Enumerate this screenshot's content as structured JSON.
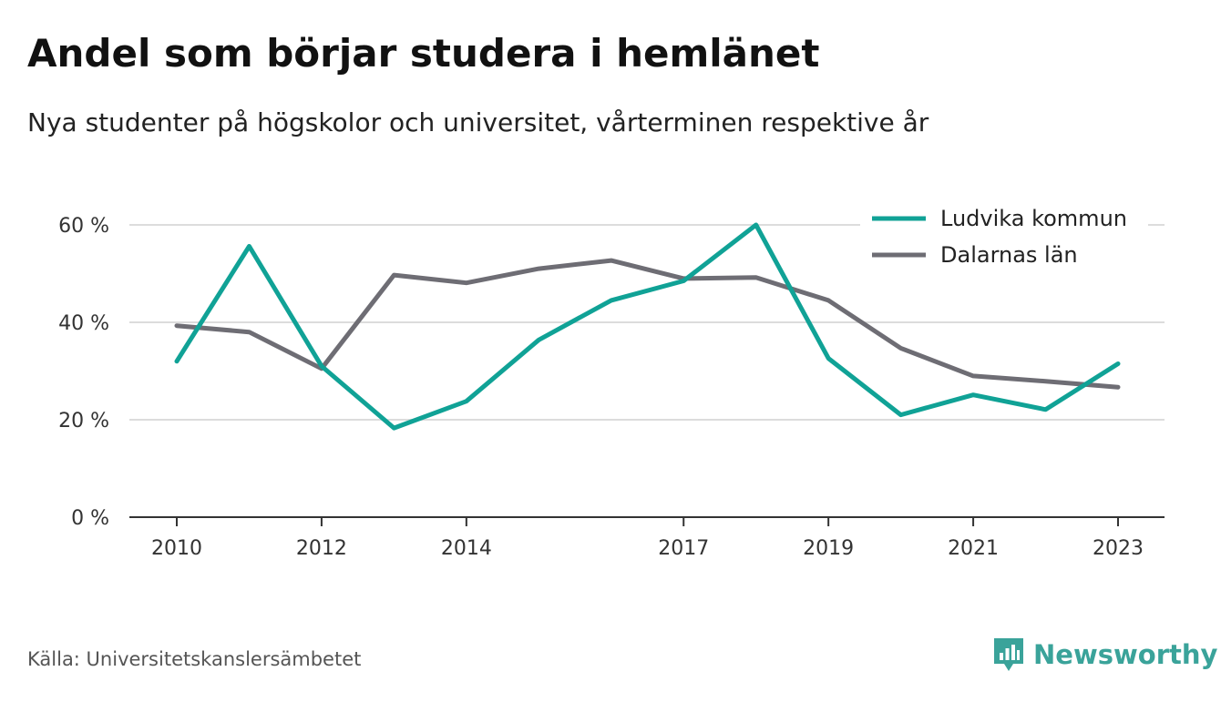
{
  "header": {
    "title": "Andel som börjar studera i hemlänet",
    "subtitle": "Nya studenter på högskolor och universitet, vårterminen respektive år"
  },
  "footer": {
    "source": "Källa: Universitetskanslersämbetet",
    "brand": "Newsworthy",
    "brand_icon": "newsworthy-logo-icon",
    "brand_color": "#3aa39a"
  },
  "chart_data": {
    "type": "line",
    "title": "Andel som börjar studera i hemlänet",
    "subtitle": "Nya studenter på högskolor och universitet, vårterminen respektive år",
    "x": [
      2010,
      2011,
      2012,
      2013,
      2014,
      2015,
      2016,
      2017,
      2018,
      2019,
      2020,
      2021,
      2022,
      2023
    ],
    "x_tick_values": [
      2010,
      2012,
      2014,
      2017,
      2019,
      2021,
      2023
    ],
    "x_tick_labels": [
      "2010",
      "2012",
      "2014",
      "2017",
      "2019",
      "2021",
      "2023"
    ],
    "ylim": [
      0,
      60
    ],
    "y_tick_values": [
      0,
      20,
      40,
      60
    ],
    "y_tick_labels": [
      "0 %",
      "20 %",
      "40 %",
      "60 %"
    ],
    "grid": "horizontal",
    "legend_position": "top-right",
    "series": [
      {
        "name": "Ludvika kommun",
        "color": "#10a296",
        "values": [
          32,
          55.6,
          31,
          18.3,
          23.8,
          36.4,
          44.5,
          48.5,
          60,
          32.6,
          21,
          25.1,
          22.1,
          31.5
        ]
      },
      {
        "name": "Dalarnas län",
        "color": "#6e6d74",
        "values": [
          39.3,
          38,
          30.5,
          49.7,
          48.1,
          51,
          52.7,
          49,
          49.2,
          44.5,
          34.7,
          29,
          27.9,
          26.7
        ]
      }
    ]
  }
}
